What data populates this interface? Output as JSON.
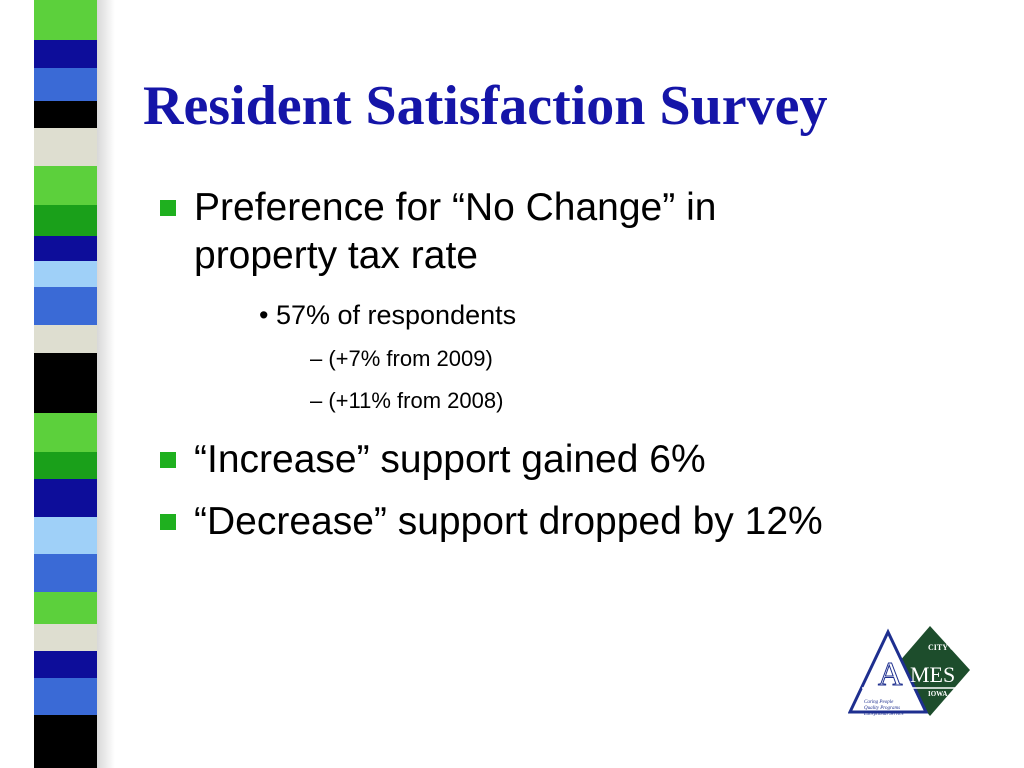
{
  "slide": {
    "title": "Resident Satisfaction Survey",
    "bullets": [
      {
        "text": "Preference for “No Change” in property tax rate"
      },
      {
        "text": "“Increase” support gained 6%"
      },
      {
        "text": "“Decrease” support dropped by 12%"
      }
    ],
    "sub_bullet": "• 57% of respondents",
    "sub_sub_bullets": [
      "– (+7% from 2009)",
      "– (+11% from 2008)"
    ]
  },
  "logo": {
    "line1": "CITY OF",
    "big_a": "A",
    "mes": "MES",
    "state": "IOWA",
    "tag1": "Caring People",
    "tag2": "Quality Programs",
    "tag3": "Exceptional Service"
  },
  "colors": {
    "title": "#1515a8",
    "bullet_marker": "#1fb01f",
    "stripes": [
      "#5cd03c",
      "#0d0d9a",
      "#3a6ad6",
      "#000000",
      "#deded0",
      "#5cd03c",
      "#1aa01a",
      "#0d0d9a",
      "#9fd0f8",
      "#3a6ad6",
      "#deded0",
      "#000000",
      "#5cd03c",
      "#1aa01a",
      "#0d0d9a",
      "#9fd0f8",
      "#3a6ad6",
      "#5cd03c",
      "#deded0",
      "#0d0d9a",
      "#3a6ad6",
      "#000000"
    ]
  }
}
